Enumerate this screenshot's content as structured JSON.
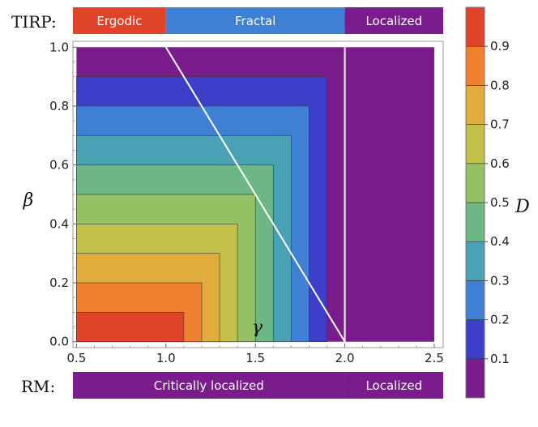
{
  "chart_data": {
    "type": "contour",
    "title": "",
    "xlabel": "",
    "ylabel": "β",
    "colorbar_label": "D",
    "inline_label": "γ",
    "xlim": [
      0.48,
      2.55
    ],
    "ylim": [
      -0.02,
      1.02
    ],
    "xticks": [
      0.5,
      1.0,
      1.5,
      2.0,
      2.5
    ],
    "xtick_labels": [
      "0.5",
      "1.0",
      "1.5",
      "2.0",
      "2.5"
    ],
    "yticks": [
      0.0,
      0.2,
      0.4,
      0.6,
      0.8,
      1.0
    ],
    "ytick_labels": [
      "0.0",
      "0.2",
      "0.4",
      "0.6",
      "0.8",
      "1.0"
    ],
    "levels": [
      0.0,
      0.1,
      0.2,
      0.3,
      0.4,
      0.5,
      0.6,
      0.7,
      0.8,
      0.9,
      1.0
    ],
    "level_colors": [
      "#7a1c8c",
      "#3d3fc8",
      "#3f80d4",
      "#4aa0b4",
      "#6cb784",
      "#94c164",
      "#c3c04a",
      "#e0ad3d",
      "#ee8030",
      "#e0432a"
    ],
    "colorbar_ticks": [
      0.1,
      0.2,
      0.3,
      0.4,
      0.5,
      0.6,
      0.7,
      0.8,
      0.9
    ],
    "colorbar_tick_labels": [
      "0.1",
      "0.2",
      "0.3",
      "0.4",
      "0.5",
      "0.6",
      "0.7",
      "0.8",
      "0.9"
    ],
    "function": "D = min(1 - beta, 2 - gamma) for gamma < 2, else 0",
    "boundary_lines": [
      {
        "name": "diagonal",
        "points": [
          [
            1.0,
            1.0
          ],
          [
            2.0,
            0.0
          ]
        ]
      },
      {
        "name": "vertical",
        "points": [
          [
            2.0,
            0.0
          ],
          [
            2.0,
            1.0
          ]
        ]
      }
    ],
    "top_bar": {
      "label": "TIRP:",
      "segments": [
        {
          "label": "Ergodic",
          "from": 0.48,
          "to": 1.0,
          "color": "#e0432a"
        },
        {
          "label": "Fractal",
          "from": 1.0,
          "to": 2.0,
          "color": "#3f80d4"
        },
        {
          "label": "Localized",
          "from": 2.0,
          "to": 2.55,
          "color": "#7a1c8c"
        }
      ]
    },
    "bottom_bar": {
      "label": "RM:",
      "segments": [
        {
          "label": "Critically localized",
          "from": 0.48,
          "to": 2.0,
          "color": "#7a1c8c"
        },
        {
          "label": "Localized",
          "from": 2.0,
          "to": 2.55,
          "color": "#7a1c8c"
        }
      ]
    }
  }
}
